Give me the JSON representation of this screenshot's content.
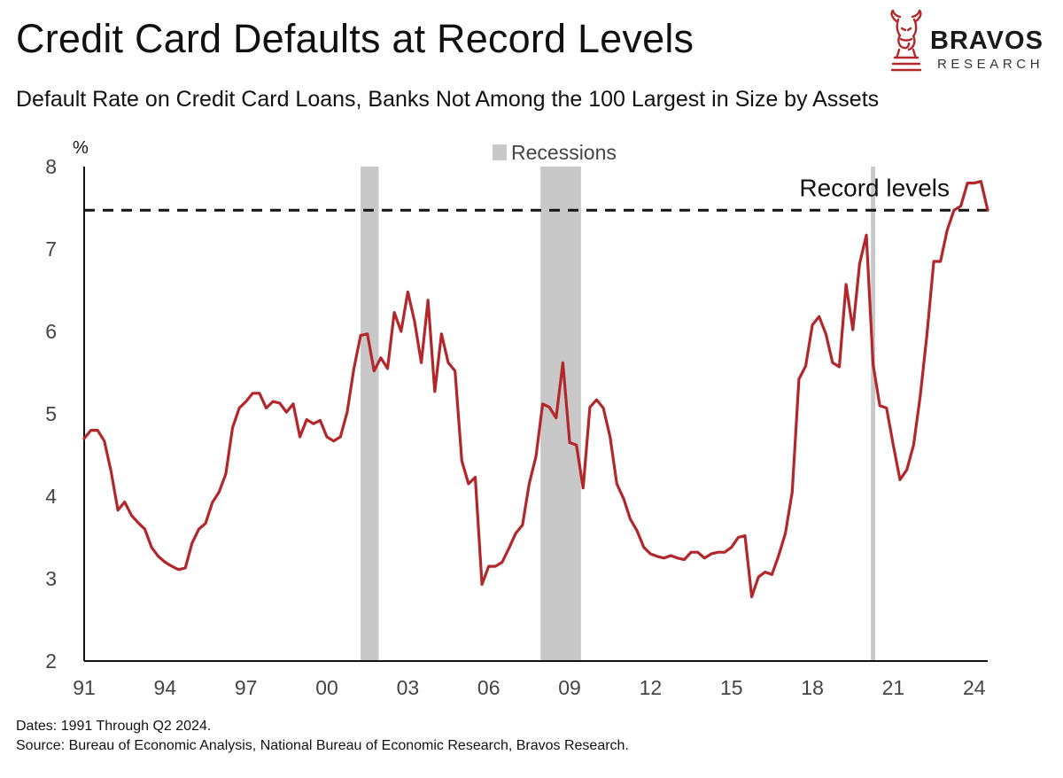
{
  "header": {
    "title": "Credit Card Defaults at Record Levels",
    "subtitle": "Default Rate on Credit Card Loans, Banks Not Among the 100 Largest in Size by Assets"
  },
  "brand": {
    "name": "BRAVOS",
    "tagline": "RESEARCH",
    "icon": "knight-bull-icon",
    "color": "#b3262a"
  },
  "footer": {
    "dates": "Dates: 1991 Through Q2 2024.",
    "source": "Source: Bureau of Economic Analysis, National Bureau of Economic Research, Bravos Research."
  },
  "chart_data": {
    "type": "line",
    "title": "Credit Card Defaults at Record Levels",
    "subtitle": "Default Rate on Credit Card Loans, Banks Not Among the 100 Largest in Size by Assets",
    "xlabel": "",
    "ylabel": "%",
    "ylim": [
      2,
      8
    ],
    "xlim": [
      1991.0,
      2024.5
    ],
    "grid": false,
    "legend": {
      "label": "Recessions",
      "placement": "top-center"
    },
    "y_ticks": [
      {
        "value": 2,
        "label": "2"
      },
      {
        "value": 3,
        "label": "3"
      },
      {
        "value": 4,
        "label": "4"
      },
      {
        "value": 5,
        "label": "5"
      },
      {
        "value": 6,
        "label": "6"
      },
      {
        "value": 7,
        "label": "7"
      },
      {
        "value": 8,
        "label": "8"
      }
    ],
    "x_ticks": [
      {
        "value": 1991,
        "label": "91"
      },
      {
        "value": 1994,
        "label": "94"
      },
      {
        "value": 1997,
        "label": "97"
      },
      {
        "value": 2000,
        "label": "00"
      },
      {
        "value": 2003,
        "label": "03"
      },
      {
        "value": 2006,
        "label": "06"
      },
      {
        "value": 2009,
        "label": "09"
      },
      {
        "value": 2012,
        "label": "12"
      },
      {
        "value": 2015,
        "label": "15"
      },
      {
        "value": 2018,
        "label": "18"
      },
      {
        "value": 2021,
        "label": "21"
      },
      {
        "value": 2024,
        "label": "24"
      }
    ],
    "recessions": [
      {
        "start": 2001.25,
        "end": 2001.92
      },
      {
        "start": 2007.92,
        "end": 2009.42
      },
      {
        "start": 2020.17,
        "end": 2020.33
      }
    ],
    "reference_line": {
      "value": 7.47,
      "label": "Record levels",
      "style": "dashed"
    },
    "series": [
      {
        "name": "Default Rate on Credit Card Loans",
        "color": "#b3262a",
        "x": [
          1991.0,
          1991.25,
          1991.5,
          1991.75,
          1992.0,
          1992.25,
          1992.5,
          1992.75,
          1993.0,
          1993.25,
          1993.5,
          1993.75,
          1994.0,
          1994.25,
          1994.5,
          1994.75,
          1995.0,
          1995.25,
          1995.5,
          1995.75,
          1996.0,
          1996.25,
          1996.5,
          1996.75,
          1997.0,
          1997.25,
          1997.5,
          1997.75,
          1998.0,
          1998.25,
          1998.5,
          1998.75,
          1999.0,
          1999.25,
          1999.5,
          1999.75,
          2000.0,
          2000.25,
          2000.5,
          2000.75,
          2001.0,
          2001.25,
          2001.5,
          2001.75,
          2002.0,
          2002.25,
          2002.5,
          2002.75,
          2003.0,
          2003.25,
          2003.5,
          2003.75,
          2004.0,
          2004.25,
          2004.5,
          2004.75,
          2005.0,
          2005.25,
          2005.5,
          2005.75,
          2006.0,
          2006.25,
          2006.5,
          2006.75,
          2007.0,
          2007.25,
          2007.5,
          2007.75,
          2008.0,
          2008.25,
          2008.5,
          2008.75,
          2009.0,
          2009.25,
          2009.5,
          2009.75,
          2010.0,
          2010.25,
          2010.5,
          2010.75,
          2011.0,
          2011.25,
          2011.5,
          2011.75,
          2012.0,
          2012.25,
          2012.5,
          2012.75,
          2013.0,
          2013.25,
          2013.5,
          2013.75,
          2014.0,
          2014.25,
          2014.5,
          2014.75,
          2015.0,
          2015.25,
          2015.5,
          2015.75,
          2016.0,
          2016.25,
          2016.5,
          2016.75,
          2017.0,
          2017.25,
          2017.5,
          2017.75,
          2018.0,
          2018.25,
          2018.5,
          2018.75,
          2019.0,
          2019.25,
          2019.5,
          2019.75,
          2020.0,
          2020.25,
          2020.5,
          2020.75,
          2021.0,
          2021.25,
          2021.5,
          2021.75,
          2022.0,
          2022.25,
          2022.5,
          2022.75,
          2023.0,
          2023.25,
          2023.5,
          2023.75,
          2024.0,
          2024.25,
          2024.5
        ],
        "values": [
          4.7,
          4.8,
          4.8,
          4.67,
          4.3,
          3.83,
          3.93,
          3.77,
          3.68,
          3.6,
          3.38,
          3.27,
          3.2,
          3.15,
          3.11,
          3.13,
          3.43,
          3.6,
          3.67,
          3.92,
          4.05,
          4.27,
          4.83,
          5.07,
          5.15,
          5.25,
          5.25,
          5.07,
          5.15,
          5.13,
          5.02,
          5.12,
          4.72,
          4.93,
          4.88,
          4.92,
          4.72,
          4.67,
          4.72,
          5.02,
          5.55,
          5.95,
          5.97,
          5.52,
          5.68,
          5.55,
          6.23,
          6.0,
          6.48,
          6.12,
          5.62,
          6.38,
          5.27,
          5.97,
          5.62,
          5.52,
          4.43,
          4.15,
          4.23,
          2.93,
          3.15,
          3.15,
          3.2,
          3.37,
          3.55,
          3.65,
          4.15,
          4.48,
          5.12,
          5.08,
          4.95,
          5.62,
          4.65,
          4.62,
          4.1,
          5.08,
          5.17,
          5.07,
          4.72,
          4.15,
          3.97,
          3.72,
          3.58,
          3.38,
          3.3,
          3.27,
          3.25,
          3.28,
          3.25,
          3.23,
          3.32,
          3.32,
          3.25,
          3.3,
          3.32,
          3.32,
          3.38,
          3.5,
          3.52,
          2.78,
          3.02,
          3.08,
          3.05,
          3.28,
          3.55,
          4.05,
          5.42,
          5.58,
          6.08,
          6.18,
          5.97,
          5.62,
          5.57,
          6.57,
          6.02,
          6.82,
          7.17,
          5.6,
          5.1,
          5.07,
          4.62,
          4.2,
          4.32,
          4.62,
          5.22,
          5.97,
          6.85,
          6.85,
          7.23,
          7.47,
          7.52,
          7.8,
          7.8,
          7.82,
          7.47
        ]
      }
    ]
  }
}
